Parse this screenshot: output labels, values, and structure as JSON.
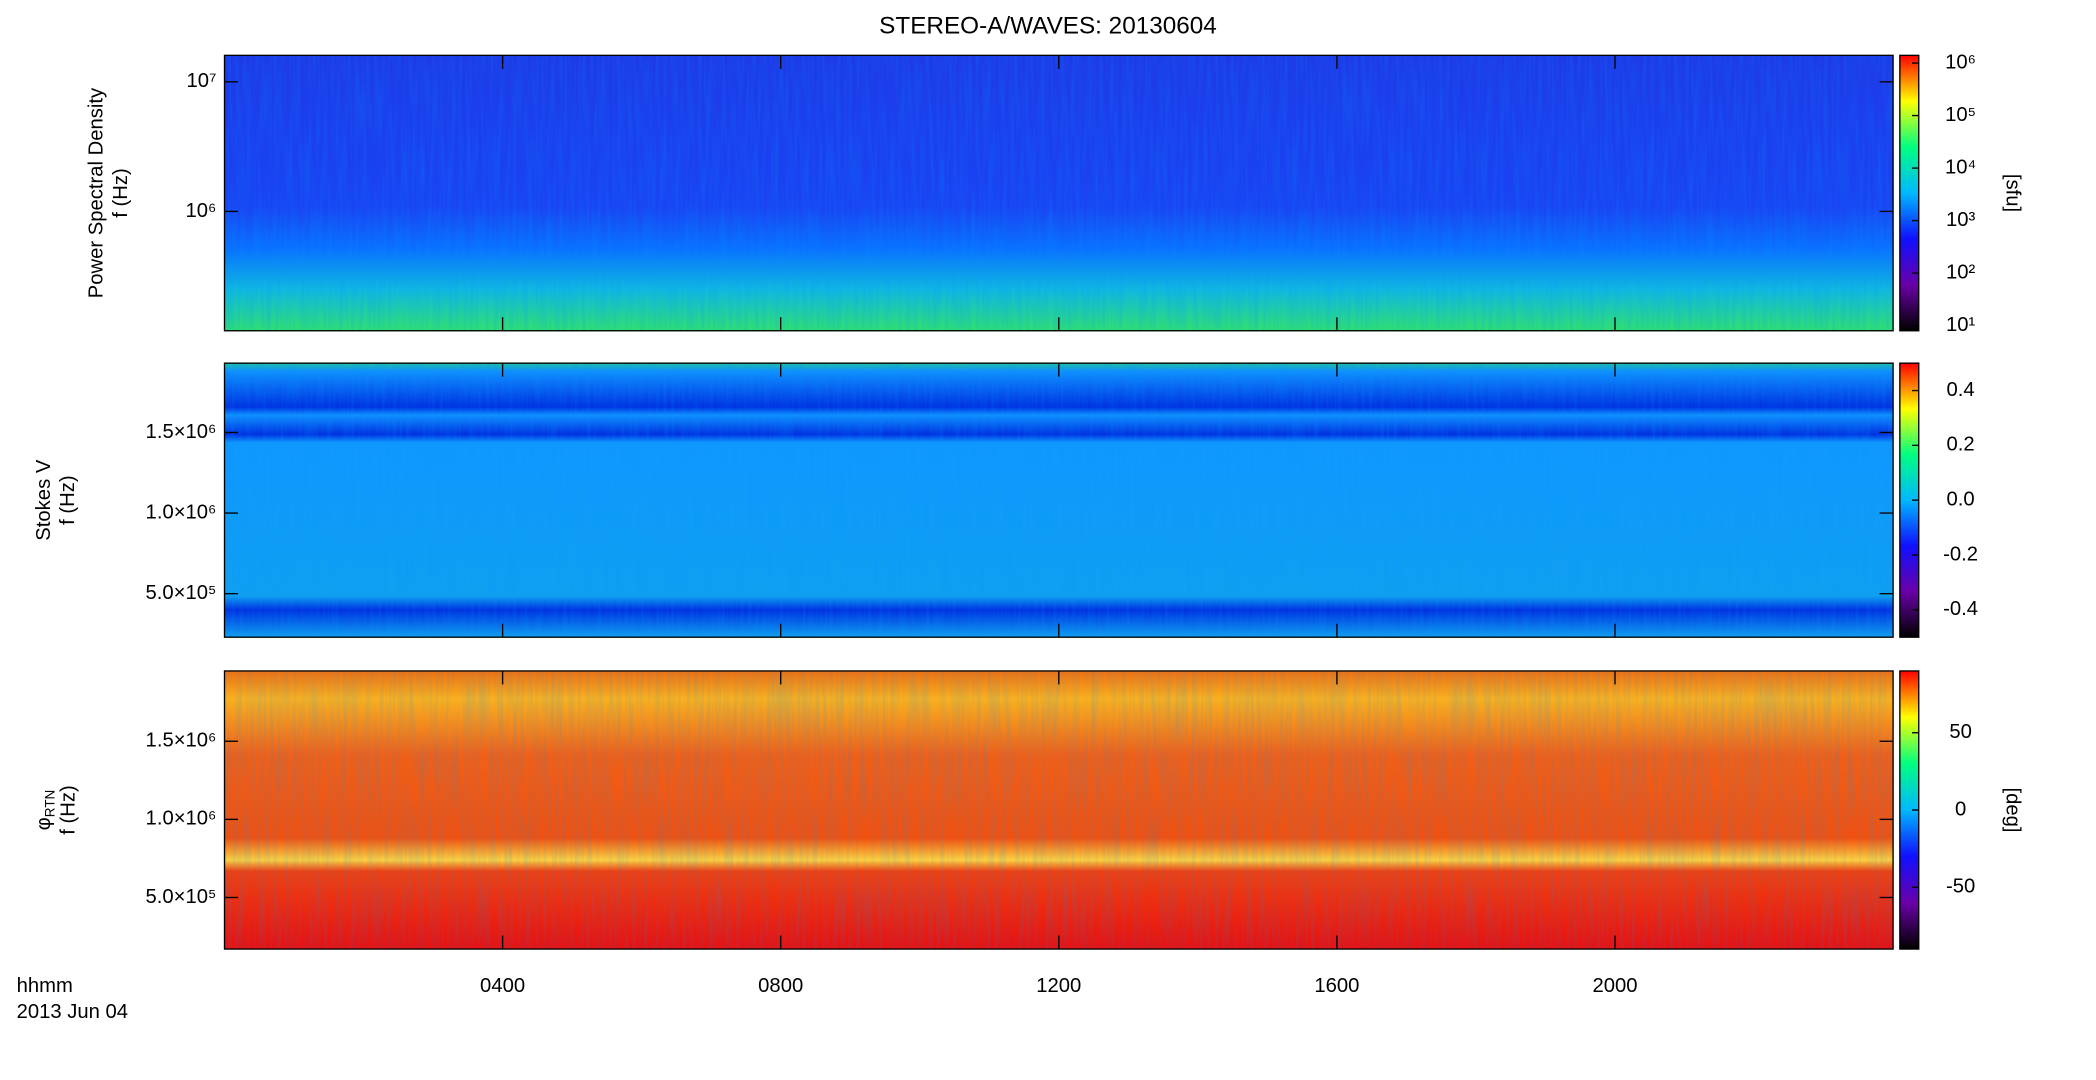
{
  "chart_data": [
    {
      "type": "heatmap",
      "title": "STEREO-A/WAVES: 20130604",
      "ylabel": [
        "Power Spectral Density",
        "f (Hz)"
      ],
      "ylog": true,
      "ylim": [
        120000,
        16000000
      ],
      "yticks": [
        {
          "value": 1000000,
          "label": "10⁶"
        },
        {
          "value": 10000000,
          "label": "10⁷"
        }
      ],
      "xlim": [
        0,
        24
      ],
      "colorbar": {
        "log": true,
        "lim": [
          8,
          1400000
        ],
        "label": "[sfu]",
        "colors": [
          "#000000",
          "#6a00a8",
          "#1010ff",
          "#00b8ff",
          "#00ff80",
          "#ffff00",
          "#ff0000"
        ],
        "ticks": [
          {
            "value": 10,
            "label": "10¹"
          },
          {
            "value": 100,
            "label": "10²"
          },
          {
            "value": 1000,
            "label": "10³"
          },
          {
            "value": 10000,
            "label": "10⁴"
          },
          {
            "value": 100000,
            "label": "10⁵"
          },
          {
            "value": 1000000,
            "label": "10⁶"
          }
        ]
      }
    },
    {
      "type": "heatmap",
      "ylabel": [
        "Stokes V",
        "f (Hz)"
      ],
      "ylog": false,
      "ylim": [
        230000,
        1930000
      ],
      "yticks": [
        {
          "value": 500000,
          "label": "5.0×10⁵"
        },
        {
          "value": 1000000,
          "label": "1.0×10⁶"
        },
        {
          "value": 1500000,
          "label": "1.5×10⁶"
        }
      ],
      "xlim": [
        0,
        24
      ],
      "colorbar": {
        "log": false,
        "lim": [
          -0.5,
          0.5
        ],
        "colors": [
          "#000000",
          "#6a00a8",
          "#1010ff",
          "#00b8ff",
          "#00ff80",
          "#ffff00",
          "#ff0000"
        ],
        "ticks": [
          -0.4,
          -0.2,
          {
            "value": 0,
            "label": "0.0"
          },
          0.2,
          0.4
        ]
      }
    },
    {
      "type": "heatmap",
      "ylabel": [
        "φ",
        "f (Hz)"
      ],
      "ylabel_sub": "RTN",
      "ylog": false,
      "ylim": [
        170000,
        1950000
      ],
      "yticks": [
        {
          "value": 500000,
          "label": "5.0×10⁵"
        },
        {
          "value": 1000000,
          "label": "1.0×10⁶"
        },
        {
          "value": 1500000,
          "label": "1.5×10⁶"
        }
      ],
      "xlim": [
        0,
        24
      ],
      "xlabel": "hhmm",
      "date": "2013 Jun 04",
      "xticks": [
        {
          "value": 4,
          "label": "0400"
        },
        {
          "value": 8,
          "label": "0800"
        },
        {
          "value": 12,
          "label": "1200"
        },
        {
          "value": 16,
          "label": "1600"
        },
        {
          "value": 20,
          "label": "2000"
        }
      ],
      "colorbar": {
        "log": false,
        "lim": [
          -90,
          90
        ],
        "label": "[deg]",
        "colors": [
          "#000000",
          "#6a00a8",
          "#1010ff",
          "#00b8ff",
          "#00ff80",
          "#ffff00",
          "#ff0000"
        ],
        "ticks": [
          -50,
          0,
          50
        ]
      }
    }
  ]
}
